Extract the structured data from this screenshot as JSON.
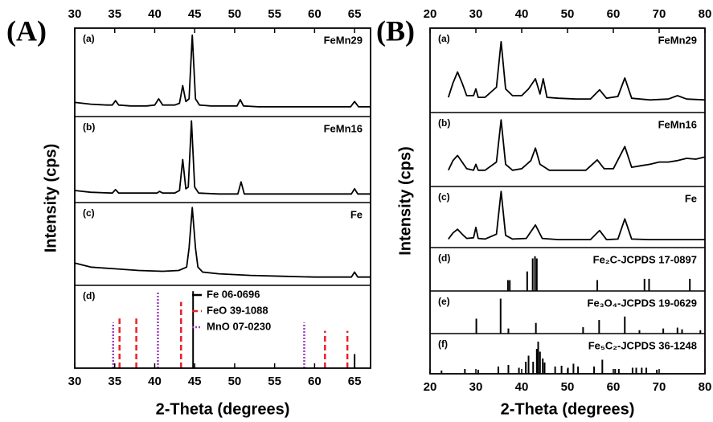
{
  "chart_data": [
    {
      "label": "(A)",
      "x_label": "2-Theta (degrees)",
      "y_label": "Intensity (cps)",
      "xlim": [
        30,
        67
      ],
      "xticks": [
        30,
        35,
        40,
        45,
        50,
        55,
        60,
        65
      ],
      "panels": [
        {
          "type": "line",
          "label": "(a)",
          "title": "FeMn29",
          "color": "#000000",
          "ylim": [
            0,
            100
          ],
          "x": [
            30,
            32,
            34,
            34.7,
            35.1,
            35.5,
            37,
            39,
            40,
            40.5,
            41,
            42.5,
            43.1,
            43.5,
            43.9,
            44.3,
            44.7,
            45.1,
            45.6,
            47,
            49,
            50.3,
            50.7,
            51.1,
            53,
            56,
            59,
            62,
            64.5,
            65,
            65.5,
            67
          ],
          "values": [
            16,
            14,
            13,
            13,
            18,
            13,
            12,
            12,
            13,
            20,
            13,
            13,
            15,
            35,
            17,
            20,
            92,
            20,
            13,
            12,
            12,
            12,
            19,
            12,
            11,
            11,
            11,
            11,
            11,
            17,
            11,
            11
          ]
        },
        {
          "type": "line",
          "label": "(b)",
          "title": "FeMn16",
          "color": "#000000",
          "ylim": [
            0,
            100
          ],
          "x": [
            30,
            32,
            34.7,
            35.1,
            35.5,
            38,
            40.3,
            40.6,
            41,
            42.5,
            43.1,
            43.5,
            43.9,
            44.2,
            44.6,
            45,
            45.5,
            48,
            50.4,
            50.8,
            51.2,
            54,
            58,
            62,
            64.6,
            65,
            65.4,
            67
          ],
          "values": [
            14,
            12,
            11,
            15,
            11,
            11,
            11,
            13,
            11,
            11,
            14,
            50,
            16,
            18,
            95,
            18,
            11,
            10,
            10,
            24,
            10,
            10,
            10,
            10,
            10,
            16,
            10,
            10
          ]
        },
        {
          "type": "line",
          "label": "(c)",
          "title": "Fe",
          "color": "#000000",
          "ylim": [
            0,
            100
          ],
          "x": [
            30,
            32,
            35,
            38,
            41,
            43,
            44,
            44.3,
            44.7,
            45.1,
            45.4,
            46,
            48,
            52,
            56,
            60,
            64.6,
            65,
            65.4,
            67
          ],
          "values": [
            27,
            22,
            20,
            18,
            17,
            18,
            22,
            45,
            94,
            45,
            22,
            16,
            14,
            12,
            11,
            10,
            10,
            16,
            10,
            10
          ]
        },
        {
          "type": "stick",
          "label": "(d)",
          "ylim": [
            0,
            100
          ],
          "legend": "upper right",
          "series": [
            {
              "name": "Fe 06-0696",
              "color": "#000000",
              "style": "solid",
              "x": [
                44.8,
                65.0
              ],
              "values": [
                93,
                17
              ]
            },
            {
              "name": "FeO 39-1088",
              "color": "#e8202a",
              "style": "dashed",
              "x": [
                35.6,
                37.7,
                43.3,
                61.3,
                64.1
              ],
              "values": [
                60,
                60,
                80,
                45,
                45
              ]
            },
            {
              "name": "MnO 07-0230",
              "color": "#9b3fc1",
              "style": "dotted",
              "x": [
                34.8,
                40.4,
                58.7
              ],
              "values": [
                55,
                93,
                55
              ]
            }
          ]
        }
      ]
    },
    {
      "label": "(B)",
      "x_label": "2-Theta (degrees)",
      "y_label": "Intensity (cps)",
      "xlim": [
        20,
        80
      ],
      "xticks": [
        20,
        30,
        40,
        50,
        60,
        70,
        80
      ],
      "panels": [
        {
          "type": "line",
          "label": "(a)",
          "title": "FeMn29",
          "color": "#000000",
          "ylim": [
            0,
            100
          ],
          "x": [
            24,
            25,
            26,
            27,
            28,
            29.5,
            30,
            30.5,
            32,
            34.5,
            35.5,
            36.5,
            38,
            40,
            41.5,
            43,
            44,
            44.7,
            45.5,
            48,
            52,
            55,
            57,
            58.5,
            61,
            62.5,
            64,
            68,
            72,
            74,
            76,
            80
          ],
          "values": [
            18,
            35,
            48,
            35,
            20,
            20,
            28,
            18,
            18,
            30,
            84,
            28,
            20,
            20,
            28,
            40,
            22,
            40,
            18,
            17,
            16,
            16,
            27,
            17,
            19,
            41,
            17,
            15,
            16,
            20,
            16,
            15
          ]
        },
        {
          "type": "line",
          "label": "(b)",
          "title": "FeMn16",
          "color": "#000000",
          "ylim": [
            0,
            100
          ],
          "x": [
            24,
            25,
            26,
            27,
            28,
            29.5,
            30,
            30.5,
            32,
            34.5,
            35.5,
            36.5,
            38,
            40,
            42,
            43,
            44,
            46,
            50,
            54,
            56.5,
            58,
            60,
            62.5,
            64,
            66,
            68,
            70,
            72,
            74,
            76,
            78,
            80
          ],
          "values": [
            22,
            35,
            42,
            33,
            24,
            22,
            30,
            22,
            22,
            33,
            90,
            30,
            22,
            24,
            35,
            52,
            30,
            22,
            22,
            22,
            36,
            24,
            24,
            54,
            26,
            28,
            30,
            33,
            33,
            35,
            38,
            37,
            40
          ]
        },
        {
          "type": "line",
          "label": "(c)",
          "title": "Fe",
          "color": "#000000",
          "ylim": [
            0,
            100
          ],
          "x": [
            24,
            25,
            26,
            27,
            28,
            29.5,
            30,
            30.5,
            32,
            34.5,
            35.5,
            36.5,
            38,
            41,
            43,
            44.5,
            48,
            52,
            55,
            57,
            58.5,
            61,
            62.5,
            64,
            68,
            72,
            76,
            80
          ],
          "values": [
            14,
            24,
            30,
            22,
            15,
            16,
            33,
            15,
            14,
            22,
            92,
            20,
            14,
            15,
            37,
            15,
            13,
            13,
            13,
            28,
            13,
            14,
            47,
            14,
            13,
            13,
            13,
            13
          ]
        },
        {
          "type": "stick",
          "label": "(d)",
          "title": "Fe₂C-JCPDS 17-0897",
          "color": "#000000",
          "ylim": [
            0,
            100
          ],
          "x": [
            37.0,
            37.4,
            41.2,
            42.4,
            42.9,
            43.3,
            56.5,
            66.8,
            67.8,
            76.7
          ],
          "values": [
            25,
            25,
            45,
            75,
            80,
            75,
            25,
            28,
            28,
            28
          ]
        },
        {
          "type": "stick",
          "label": "(e)",
          "title": "Fe₃O₄-JCPDS 19-0629",
          "color": "#000000",
          "ylim": [
            0,
            100
          ],
          "x": [
            30.1,
            35.4,
            37.1,
            43.1,
            53.4,
            56.9,
            62.5,
            65.7,
            70.9,
            74.0,
            75.0,
            79.0
          ],
          "values": [
            35,
            82,
            12,
            25,
            15,
            32,
            40,
            8,
            12,
            14,
            10,
            8
          ]
        },
        {
          "type": "stick",
          "label": "(f)",
          "title": "Fe₅C₂-JCPDS 36-1248",
          "color": "#000000",
          "ylim": [
            0,
            100
          ],
          "x": [
            22.5,
            27.6,
            30.5,
            34.9,
            37.1,
            39.4,
            40.9,
            41.5,
            42.5,
            43.3,
            43.6,
            44.0,
            44.6,
            45.0,
            47.3,
            48.7,
            50.1,
            51.3,
            52.3,
            55.8,
            57.6,
            60.4,
            61.2,
            64.2,
            65.0,
            66.2,
            67.2,
            69.5
          ],
          "values": [
            8,
            12,
            10,
            18,
            22,
            15,
            30,
            45,
            30,
            62,
            80,
            55,
            38,
            28,
            18,
            20,
            15,
            25,
            18,
            18,
            35,
            12,
            12,
            15,
            15,
            15,
            15,
            10
          ]
        }
      ]
    }
  ]
}
